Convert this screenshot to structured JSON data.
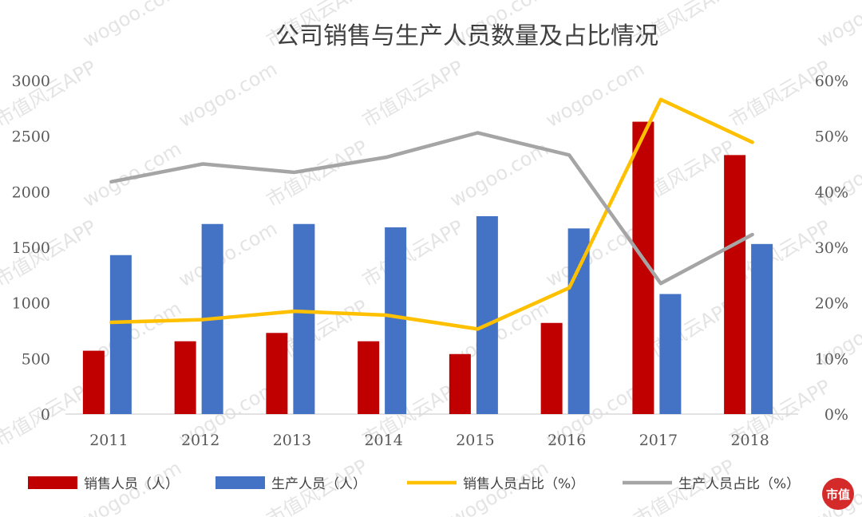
{
  "chart_data": {
    "type": "bar",
    "title": "公司销售与生产人员数量及占比情况",
    "categories": [
      "2011",
      "2012",
      "2013",
      "2014",
      "2015",
      "2016",
      "2017",
      "2018"
    ],
    "y_left": {
      "ylim": [
        0,
        3000
      ],
      "ticks": [
        "0",
        "500",
        "1000",
        "1500",
        "2000",
        "2500",
        "3000"
      ]
    },
    "y_right": {
      "ylim": [
        0,
        60
      ],
      "ticks": [
        "0%",
        "10%",
        "20%",
        "30%",
        "40%",
        "50%",
        "60%"
      ]
    },
    "series": [
      {
        "name": "销售人员（人）",
        "kind": "bar",
        "axis": "left",
        "color": "#c00000",
        "values": [
          570,
          655,
          730,
          655,
          540,
          820,
          2630,
          2330
        ]
      },
      {
        "name": "生产人员（人）",
        "kind": "bar",
        "axis": "left",
        "color": "#4472c4",
        "values": [
          1430,
          1710,
          1710,
          1680,
          1780,
          1670,
          1080,
          1530
        ]
      },
      {
        "name": "销售人员占比（%）",
        "kind": "line",
        "axis": "right",
        "color": "#ffc000",
        "values": [
          16.5,
          17.0,
          18.5,
          17.8,
          15.3,
          22.7,
          56.6,
          48.9
        ]
      },
      {
        "name": "生产人员占比（%）",
        "kind": "line",
        "axis": "right",
        "color": "#a5a5a5",
        "values": [
          41.8,
          45.0,
          43.5,
          46.2,
          50.6,
          46.6,
          23.5,
          32.3
        ]
      }
    ],
    "grid": false,
    "legend": "bottom"
  },
  "watermark": {
    "text_cn": "市值风云APP",
    "text_en": "wogoo.com"
  },
  "logo": {
    "text": "市值"
  }
}
